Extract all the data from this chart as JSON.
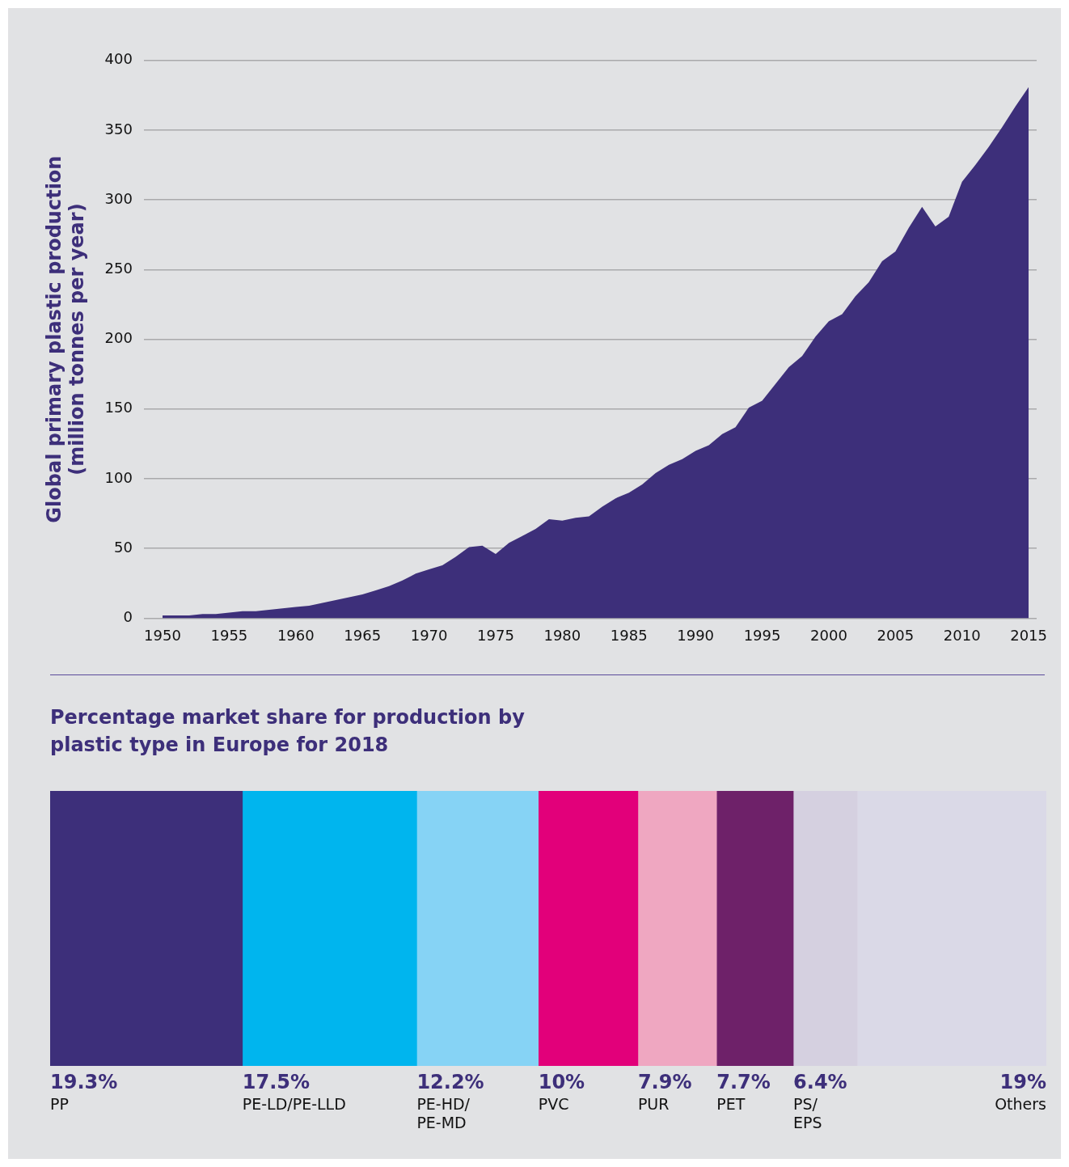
{
  "chart_data": [
    {
      "type": "area",
      "ylabel": "Global primary plastic production (million tonnes per year)",
      "x": [
        1950,
        1951,
        1952,
        1953,
        1954,
        1955,
        1956,
        1957,
        1958,
        1959,
        1960,
        1961,
        1962,
        1963,
        1964,
        1965,
        1966,
        1967,
        1968,
        1969,
        1970,
        1971,
        1972,
        1973,
        1974,
        1975,
        1976,
        1977,
        1978,
        1979,
        1980,
        1981,
        1982,
        1983,
        1984,
        1985,
        1986,
        1987,
        1988,
        1989,
        1990,
        1991,
        1992,
        1993,
        1994,
        1995,
        1996,
        1997,
        1998,
        1999,
        2000,
        2001,
        2002,
        2003,
        2004,
        2005,
        2006,
        2007,
        2008,
        2009,
        2010,
        2011,
        2012,
        2013,
        2014,
        2015
      ],
      "values": [
        2,
        2,
        2,
        3,
        3,
        4,
        5,
        5,
        6,
        7,
        8,
        9,
        11,
        13,
        15,
        17,
        20,
        23,
        27,
        32,
        35,
        38,
        44,
        51,
        52,
        46,
        54,
        59,
        64,
        71,
        70,
        72,
        73,
        80,
        86,
        90,
        96,
        104,
        110,
        114,
        120,
        124,
        132,
        137,
        151,
        156,
        168,
        180,
        188,
        202,
        213,
        218,
        231,
        241,
        256,
        263,
        280,
        295,
        281,
        288,
        313,
        325,
        338,
        352,
        367,
        381
      ],
      "color": "#3d2f7a",
      "xlim": [
        1948.6,
        2015.6
      ],
      "xticks": [
        1950,
        1955,
        1960,
        1965,
        1970,
        1975,
        1980,
        1985,
        1990,
        1995,
        2000,
        2005,
        2010,
        2015
      ],
      "ylim": [
        0,
        400
      ],
      "yticks": [
        0,
        50,
        100,
        150,
        200,
        250,
        300,
        350,
        400
      ],
      "grid": "y"
    },
    {
      "type": "bar",
      "orientation": "horizontal",
      "stacked": true,
      "title": "Percentage market share for production by plastic type in Europe for 2018",
      "categories": [
        null
      ],
      "tick_labels": false,
      "series": [
        {
          "name": "PP",
          "color": "#3d2f7a",
          "values": [
            19.3
          ],
          "value_labels": [
            "19.3%"
          ]
        },
        {
          "name": "PE-LD/PE-LLD",
          "color": "#00b5ee",
          "values": [
            17.5
          ],
          "value_labels": [
            "17.5%"
          ]
        },
        {
          "name": "PE-HD/PE-MD",
          "color": "#86d3f5",
          "values": [
            12.2
          ],
          "value_labels": [
            "12.2%"
          ]
        },
        {
          "name": "PVC",
          "color": "#e2007a",
          "values": [
            10
          ],
          "value_labels": [
            "10%"
          ]
        },
        {
          "name": "PUR",
          "color": "#efa7c1",
          "values": [
            7.9
          ],
          "value_labels": [
            "7.9%"
          ]
        },
        {
          "name": "PET",
          "color": "#6e2169",
          "values": [
            7.7
          ],
          "value_labels": [
            "7.7%"
          ]
        },
        {
          "name": "PS/EPS",
          "color": "#d5d0e0",
          "values": [
            6.4
          ],
          "value_labels": [
            "6.4%"
          ]
        },
        {
          "name": "Others",
          "color": "#dad9e7",
          "values": [
            19
          ],
          "value_labels": [
            "19%"
          ]
        }
      ]
    }
  ]
}
